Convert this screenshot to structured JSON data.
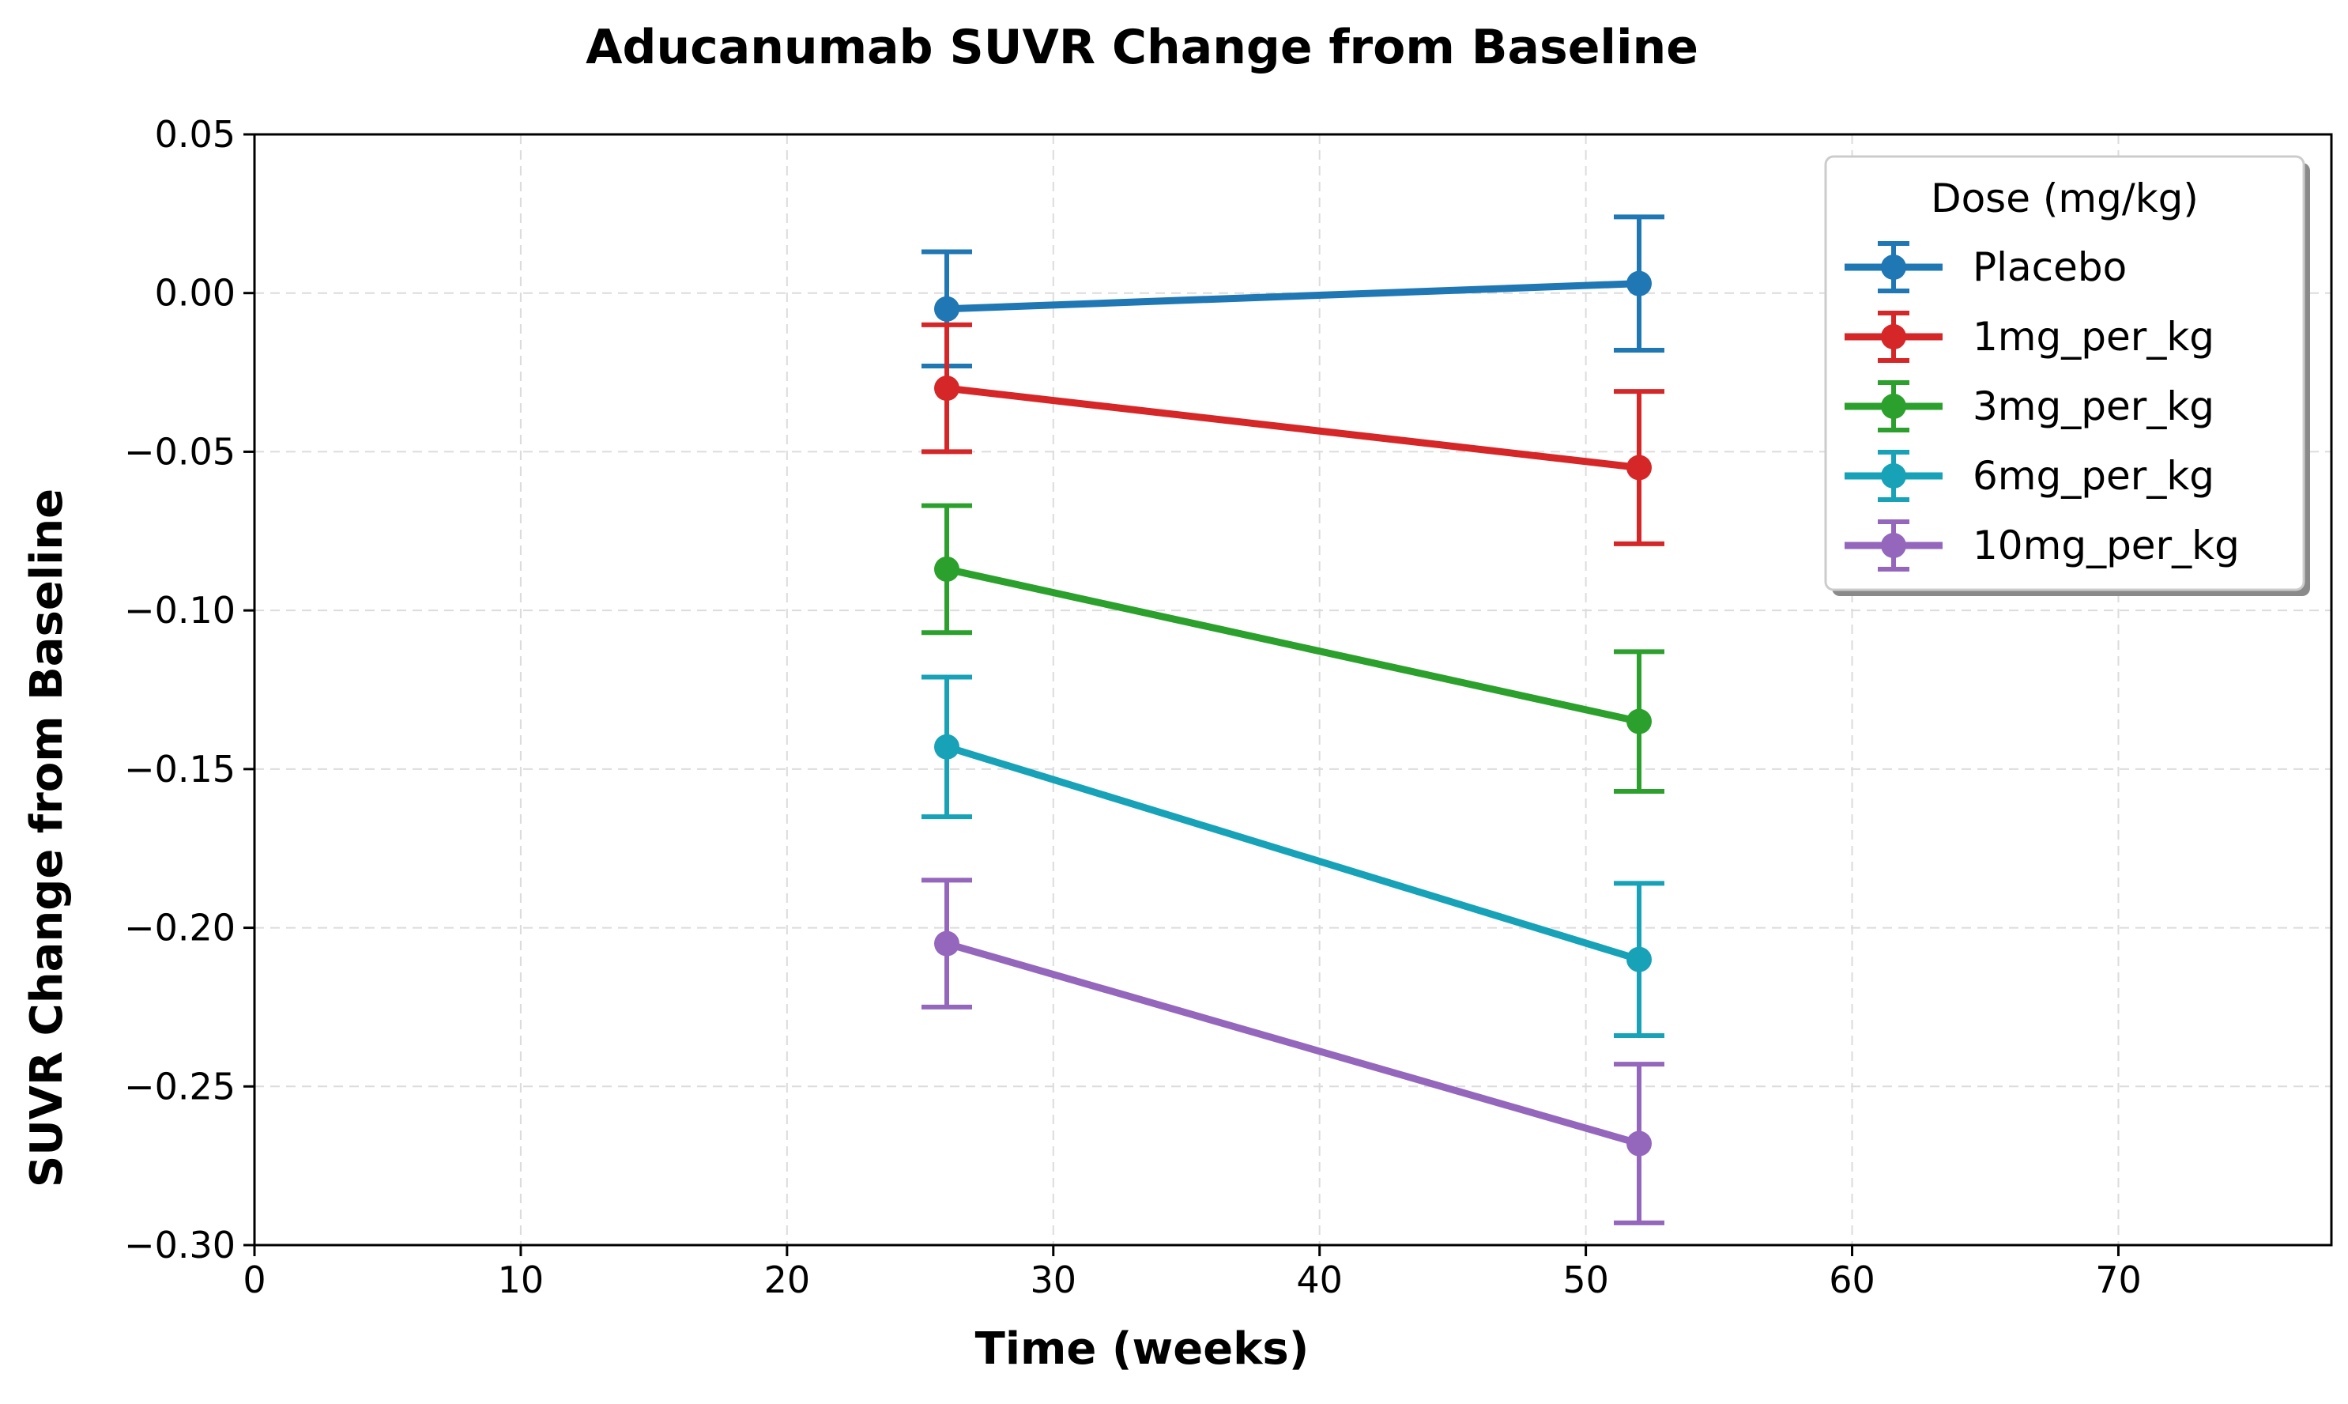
{
  "chart_data": {
    "type": "line",
    "title": "Aducanumab SUVR Change from Baseline",
    "xlabel": "Time (weeks)",
    "ylabel": "SUVR Change from Baseline",
    "xlim": [
      0,
      78
    ],
    "ylim": [
      -0.3,
      0.05
    ],
    "xticks": [
      0,
      10,
      20,
      30,
      40,
      50,
      60,
      70
    ],
    "xtick_labels": [
      "0",
      "10",
      "20",
      "30",
      "40",
      "50",
      "60",
      "70"
    ],
    "yticks": [
      0.05,
      0.0,
      -0.05,
      -0.1,
      -0.15,
      -0.2,
      -0.25,
      -0.3
    ],
    "ytick_labels": [
      "0.05",
      "0.00",
      "−0.05",
      "−0.10",
      "−0.15",
      "−0.20",
      "−0.25",
      "−0.30"
    ],
    "grid": true,
    "legend": {
      "title": "Dose (mg/kg)",
      "placement": "top-right"
    },
    "x": [
      26,
      52
    ],
    "series": [
      {
        "name": "Placebo",
        "color": "#1f77b4",
        "values": [
          -0.005,
          0.003
        ],
        "error": [
          0.018,
          0.021
        ]
      },
      {
        "name": "1mg_per_kg",
        "color": "#d62728",
        "values": [
          -0.03,
          -0.055
        ],
        "error": [
          0.02,
          0.024
        ]
      },
      {
        "name": "3mg_per_kg",
        "color": "#2ca02c",
        "values": [
          -0.087,
          -0.135
        ],
        "error": [
          0.02,
          0.022
        ]
      },
      {
        "name": "6mg_per_kg",
        "color": "#17a2b8",
        "values": [
          -0.143,
          -0.21
        ],
        "error": [
          0.022,
          0.024
        ]
      },
      {
        "name": "10mg_per_kg",
        "color": "#9467bd",
        "values": [
          -0.205,
          -0.268
        ],
        "error": [
          0.02,
          0.025
        ]
      }
    ]
  }
}
